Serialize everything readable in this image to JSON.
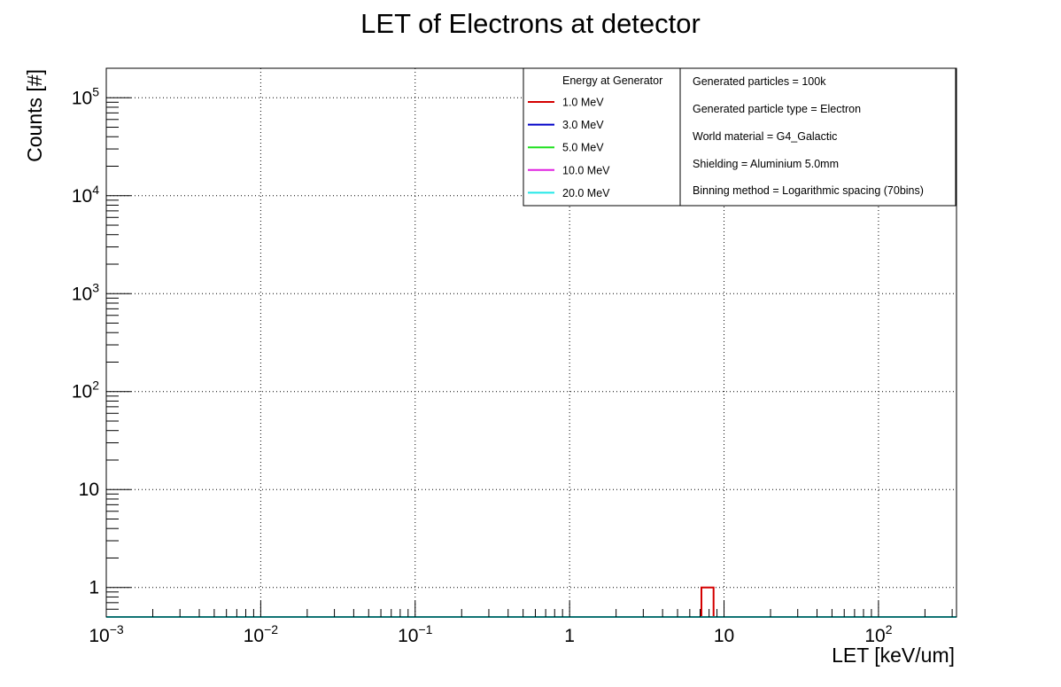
{
  "chart_data": {
    "type": "line",
    "drawstyle": "steps",
    "title": "LET of Electrons at detector",
    "xlabel": "LET [keV/um]",
    "ylabel": "Counts [#]",
    "x_scale": "log",
    "y_scale": "log",
    "xlim": [
      0.001,
      320
    ],
    "ylim": [
      0.5,
      200000
    ],
    "grid": true,
    "x_ticks": [
      {
        "value": 0.001,
        "base": "10",
        "exp": "−3"
      },
      {
        "value": 0.01,
        "base": "10",
        "exp": "−2"
      },
      {
        "value": 0.1,
        "base": "10",
        "exp": "−1"
      },
      {
        "value": 1,
        "base": "1",
        "exp": ""
      },
      {
        "value": 10,
        "base": "10",
        "exp": ""
      },
      {
        "value": 100,
        "base": "10",
        "exp": "2"
      }
    ],
    "y_ticks": [
      {
        "value": 1,
        "base": "1",
        "exp": ""
      },
      {
        "value": 10,
        "base": "10",
        "exp": ""
      },
      {
        "value": 100,
        "base": "10",
        "exp": "2"
      },
      {
        "value": 1000,
        "base": "10",
        "exp": "3"
      },
      {
        "value": 10000,
        "base": "10",
        "exp": "4"
      },
      {
        "value": 100000,
        "base": "10",
        "exp": "5"
      }
    ],
    "bins": {
      "n": 70,
      "xmin": 0.001,
      "xmax": 320
    },
    "legend": {
      "header": "Energy at Generator",
      "placement": "top-right",
      "info_lines": [
        "Generated particles = 100k",
        "Generated particle type = Electron",
        "World material = G4_Galactic",
        "Shielding = Aluminium 5.0mm",
        "Binning method = Logarithmic spacing (70bins)"
      ]
    },
    "series": [
      {
        "name": "1.0 MeV",
        "color": "#d40000",
        "values": [
          0,
          0,
          0,
          0,
          0,
          0,
          0,
          0,
          0,
          0,
          0,
          0,
          0,
          0,
          0,
          0,
          0,
          0,
          0,
          0,
          0,
          0,
          0,
          0,
          0,
          0,
          0,
          0,
          0,
          0,
          0,
          0,
          0,
          0,
          0,
          0,
          0,
          0,
          0,
          0,
          0,
          0,
          0,
          0,
          0,
          0,
          0,
          0,
          0,
          1,
          0,
          0,
          0,
          0,
          0,
          0,
          0,
          0,
          0,
          0,
          0,
          0,
          0,
          0,
          0,
          0,
          0,
          0,
          0,
          0
        ]
      },
      {
        "name": "3.0 MeV",
        "color": "#0000c8",
        "values": [
          0,
          0,
          0,
          0,
          0,
          0,
          0,
          0,
          0,
          0,
          0,
          0,
          0,
          0,
          0,
          0,
          0,
          0,
          0,
          0,
          0,
          0,
          0,
          0,
          0,
          0,
          0,
          0,
          0,
          0,
          0,
          0,
          0,
          0,
          0,
          0,
          0,
          0,
          0,
          0,
          0,
          0,
          0,
          0,
          0,
          0,
          0,
          0,
          0,
          0,
          0,
          0,
          0,
          0,
          0,
          0,
          0,
          0,
          0,
          0,
          0,
          0,
          0,
          0,
          0,
          0,
          0,
          0,
          0,
          0
        ]
      },
      {
        "name": "5.0 MeV",
        "color": "#1ee01e",
        "values": [
          0,
          0,
          0,
          0,
          0,
          0,
          0,
          0,
          0,
          0,
          0,
          0,
          0,
          0,
          0,
          0,
          0,
          0,
          0,
          0,
          0,
          0,
          0,
          0,
          0,
          0,
          0,
          0,
          0,
          0,
          0,
          0,
          0,
          0,
          0,
          0,
          0,
          0,
          0,
          0,
          0,
          0,
          0,
          0,
          0,
          0,
          0,
          0,
          0,
          0,
          0,
          0,
          0,
          0,
          0,
          0,
          0,
          0,
          0,
          0,
          0,
          0,
          0,
          0,
          0,
          0,
          0,
          0,
          0,
          0
        ]
      },
      {
        "name": "10.0 MeV",
        "color": "#e020e0",
        "values": [
          0,
          0,
          0,
          0,
          0,
          0,
          0,
          0,
          0,
          0,
          0,
          0,
          0,
          0,
          0,
          0,
          0,
          0,
          0,
          0,
          0,
          0,
          0,
          0,
          0,
          0,
          0,
          0,
          0,
          0,
          0,
          0,
          0,
          0,
          0,
          0,
          0,
          0,
          0,
          0,
          0,
          0,
          0,
          0,
          0,
          0,
          0,
          0,
          0,
          0,
          0,
          0,
          0,
          0,
          0,
          0,
          0,
          0,
          0,
          0,
          0,
          0,
          0,
          0,
          0,
          0,
          0,
          0,
          0,
          0
        ]
      },
      {
        "name": "20.0 MeV",
        "color": "#22e8e8",
        "values": [
          0,
          0,
          0,
          0,
          0,
          0,
          0,
          0,
          0,
          0,
          0,
          0,
          0,
          0,
          0,
          0,
          0,
          0,
          0,
          0,
          0,
          0,
          0,
          0,
          0,
          0,
          0,
          0,
          0,
          0,
          0,
          0,
          0,
          0,
          0,
          0,
          0,
          0,
          0,
          0,
          0,
          0,
          0,
          0,
          0,
          0,
          0,
          0,
          0,
          0,
          0,
          0,
          0,
          0,
          0,
          0,
          0,
          0,
          0,
          0,
          0,
          0,
          0,
          0,
          0,
          0,
          0,
          0,
          0,
          0
        ]
      }
    ]
  }
}
